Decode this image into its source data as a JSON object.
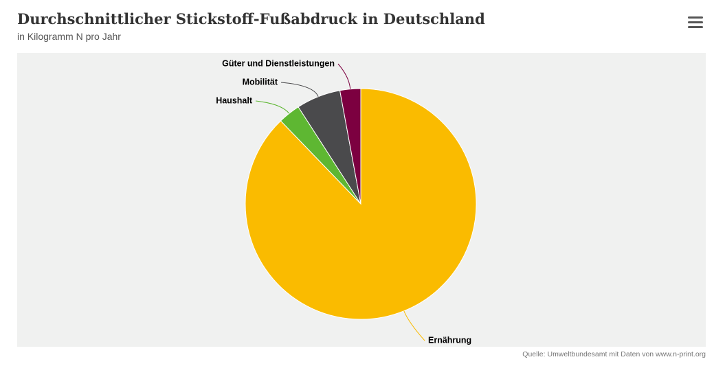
{
  "chart_data": {
    "type": "pie",
    "title": "Durchschnittlicher Stickstoff-Fußabdruck in Deutschland",
    "subtitle": "in Kilogramm N pro Jahr",
    "categories": [
      "Ernährung",
      "Haushalt",
      "Mobilität",
      "Güter und Dienstleistungen"
    ],
    "values": [
      87.8,
      3.1,
      6.2,
      2.9
    ],
    "colors": [
      "#fabb00",
      "#5eb732",
      "#4a4a4c",
      "#7c0040"
    ],
    "credits": "Quelle: Umweltbundesamt mit Daten von www.n-print.org"
  }
}
